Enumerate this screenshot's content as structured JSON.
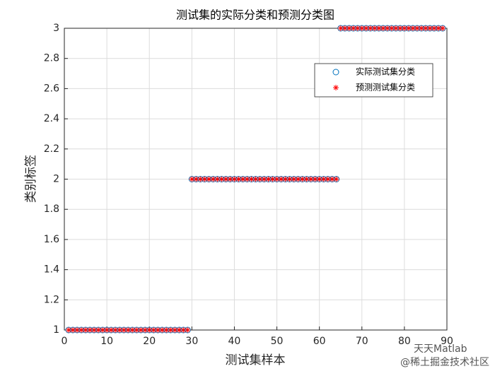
{
  "chart_data": {
    "type": "scatter",
    "title": "测试集的实际分类和预测分类图",
    "x_label": "测试集样本",
    "y_label": "类别标签",
    "x": [
      1,
      2,
      3,
      4,
      5,
      6,
      7,
      8,
      9,
      10,
      11,
      12,
      13,
      14,
      15,
      16,
      17,
      18,
      19,
      20,
      21,
      22,
      23,
      24,
      25,
      26,
      27,
      28,
      29,
      30,
      31,
      32,
      33,
      34,
      35,
      36,
      37,
      38,
      39,
      40,
      41,
      42,
      43,
      44,
      45,
      46,
      47,
      48,
      49,
      50,
      51,
      52,
      53,
      54,
      55,
      56,
      57,
      58,
      59,
      60,
      61,
      62,
      63,
      64,
      65,
      66,
      67,
      68,
      69,
      70,
      71,
      72,
      73,
      74,
      75,
      76,
      77,
      78,
      79,
      80,
      81,
      82,
      83,
      84,
      85,
      86,
      87,
      88,
      89
    ],
    "series": [
      {
        "name": "实际测试集分类",
        "color": "#0072bd",
        "marker": "o",
        "values": [
          1,
          1,
          1,
          1,
          1,
          1,
          1,
          1,
          1,
          1,
          1,
          1,
          1,
          1,
          1,
          1,
          1,
          1,
          1,
          1,
          1,
          1,
          1,
          1,
          1,
          1,
          1,
          1,
          1,
          2,
          2,
          2,
          2,
          2,
          2,
          2,
          2,
          2,
          2,
          2,
          2,
          2,
          2,
          2,
          2,
          2,
          2,
          2,
          2,
          2,
          2,
          2,
          2,
          2,
          2,
          2,
          2,
          2,
          2,
          2,
          2,
          2,
          2,
          2,
          3,
          3,
          3,
          3,
          3,
          3,
          3,
          3,
          3,
          3,
          3,
          3,
          3,
          3,
          3,
          3,
          3,
          3,
          3,
          3,
          3,
          3,
          3,
          3,
          3
        ]
      },
      {
        "name": "预测测试集分类",
        "color": "#ff0000",
        "marker": "*",
        "values": [
          1,
          1,
          1,
          1,
          1,
          1,
          1,
          1,
          1,
          1,
          1,
          1,
          1,
          1,
          1,
          1,
          1,
          1,
          1,
          1,
          1,
          1,
          1,
          1,
          1,
          1,
          1,
          1,
          1,
          2,
          2,
          2,
          2,
          2,
          2,
          2,
          2,
          2,
          2,
          2,
          2,
          2,
          2,
          2,
          2,
          2,
          2,
          2,
          2,
          2,
          2,
          2,
          2,
          2,
          2,
          2,
          2,
          2,
          2,
          2,
          2,
          2,
          2,
          2,
          3,
          3,
          3,
          3,
          3,
          3,
          3,
          3,
          3,
          3,
          3,
          3,
          3,
          3,
          3,
          3,
          3,
          3,
          3,
          3,
          3,
          3,
          3,
          3,
          3
        ]
      }
    ],
    "xlim": [
      0,
      90
    ],
    "xticks": [
      0,
      10,
      20,
      30,
      40,
      50,
      60,
      70,
      80,
      90
    ],
    "ylim": [
      1,
      3
    ],
    "yticks": [
      1,
      1.2,
      1.4,
      1.6,
      1.8,
      2,
      2.2,
      2.4,
      2.6,
      2.8,
      3
    ],
    "grid": true,
    "legend": "upper right"
  },
  "watermark": {
    "line1": "天天Matlab",
    "line2": "@稀土掘金技术社区"
  }
}
